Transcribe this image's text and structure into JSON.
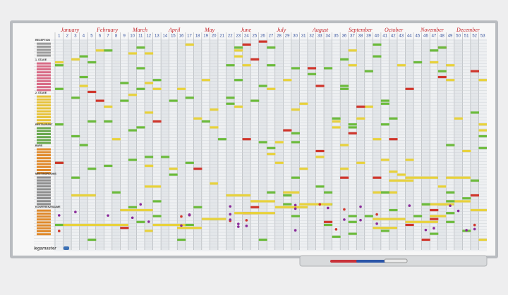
{
  "months": [
    "January",
    "February",
    "March",
    "April",
    "May",
    "June",
    "July",
    "August",
    "September",
    "October",
    "November",
    "December"
  ],
  "weeks": [
    1,
    2,
    3,
    4,
    5,
    6,
    7,
    8,
    9,
    10,
    11,
    12,
    13,
    14,
    15,
    16,
    17,
    18,
    19,
    20,
    21,
    22,
    23,
    24,
    25,
    26,
    27,
    28,
    29,
    30,
    31,
    32,
    33,
    34,
    35,
    36,
    37,
    38,
    39,
    40,
    41,
    42,
    43,
    44,
    45,
    46,
    47,
    48,
    49,
    50,
    51,
    52,
    53
  ],
  "sections": [
    "RECEPTION",
    "1. STAGE",
    "2. STAGE",
    "RESTAURANT",
    "BARS",
    "MEETINGROOMS",
    "KONFERENZRÄUME"
  ],
  "brand": "legamaster"
}
